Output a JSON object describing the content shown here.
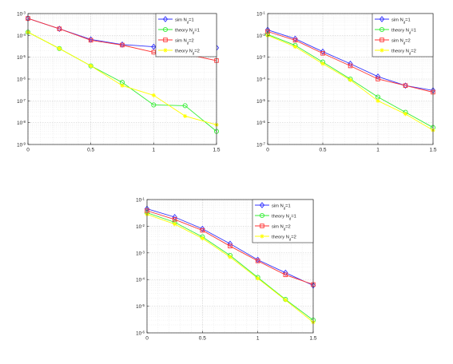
{
  "figure": {
    "background": "#ffffff"
  },
  "series_style": [
    {
      "name_base": "sim N",
      "name_sub": "d",
      "name_tail": "=1",
      "color": "#3333ff",
      "marker": "diamond"
    },
    {
      "name_base": "theory N",
      "name_sub": "d",
      "name_tail": "=1",
      "color": "#33ee33",
      "marker": "circle"
    },
    {
      "name_base": "sim N",
      "name_sub": "d",
      "name_tail": "=2",
      "color": "#ff3333",
      "marker": "square"
    },
    {
      "name_base": "theory N",
      "name_sub": "d",
      "name_tail": "=2",
      "color": "#ffff00",
      "marker": "star"
    }
  ],
  "chart_data": [
    {
      "type": "line",
      "yscale": "log",
      "xlim": [
        0,
        1.5
      ],
      "ylim_exp": [
        -9,
        -3
      ],
      "xticks": [
        "0",
        "0.5",
        "1",
        "1.5"
      ],
      "yticks": [
        {
          "base": "10",
          "exp": "-9"
        },
        {
          "base": "10",
          "exp": "-8"
        },
        {
          "base": "10",
          "exp": "-7"
        },
        {
          "base": "10",
          "exp": "-6"
        },
        {
          "base": "10",
          "exp": "-5"
        },
        {
          "base": "10",
          "exp": "-4"
        },
        {
          "base": "10",
          "exp": "-3"
        }
      ],
      "grid": true,
      "legend": "top-right",
      "x": [
        0,
        0.25,
        0.5,
        0.75,
        1.0,
        1.25,
        1.5
      ],
      "series": [
        {
          "name": "sim Nd=1",
          "values": [
            0.0006,
            0.0002,
            6.5e-05,
            3.8e-05,
            3e-05,
            1.6e-05,
            2.7e-05
          ]
        },
        {
          "name": "theory Nd=1",
          "values": [
            0.00014,
            2.5e-05,
            4e-06,
            7e-07,
            6.5e-08,
            6e-08,
            4e-09
          ]
        },
        {
          "name": "sim Nd=2",
          "values": [
            0.0006,
            0.0002,
            6e-05,
            3.6e-05,
            1.7e-05,
            1.4e-05,
            7e-06
          ]
        },
        {
          "name": "theory Nd=2",
          "values": [
            0.00014,
            2.5e-05,
            4e-06,
            5e-07,
            1.8e-07,
            2e-08,
            8e-09
          ]
        }
      ]
    },
    {
      "type": "line",
      "yscale": "log",
      "xlim": [
        0,
        1.5
      ],
      "ylim_exp": [
        -7,
        -1
      ],
      "xticks": [
        "0",
        "0.5",
        "1",
        "1.5"
      ],
      "yticks": [
        {
          "base": "10",
          "exp": "-7"
        },
        {
          "base": "10",
          "exp": "-6"
        },
        {
          "base": "10",
          "exp": "-5"
        },
        {
          "base": "10",
          "exp": "-4"
        },
        {
          "base": "10",
          "exp": "-3"
        },
        {
          "base": "10",
          "exp": "-2"
        },
        {
          "base": "10",
          "exp": "-1"
        }
      ],
      "grid": true,
      "legend": "top-right",
      "x": [
        0,
        0.25,
        0.5,
        0.75,
        1.0,
        1.25,
        1.5
      ],
      "series": [
        {
          "name": "sim Nd=1",
          "values": [
            0.018,
            0.007,
            0.0018,
            0.0005,
            0.00013,
            5e-05,
            3e-05
          ]
        },
        {
          "name": "theory Nd=1",
          "values": [
            0.011,
            0.0035,
            0.0006,
            0.0001,
            1.5e-05,
            3e-06,
            6e-07
          ]
        },
        {
          "name": "sim Nd=2",
          "values": [
            0.015,
            0.006,
            0.0015,
            0.0004,
            0.0001,
            5e-05,
            2.5e-05
          ]
        },
        {
          "name": "theory Nd=2",
          "values": [
            0.01,
            0.003,
            0.0005,
            9e-05,
            1e-05,
            2.5e-06,
            4.5e-07
          ]
        }
      ]
    },
    {
      "type": "line",
      "yscale": "log",
      "xlim": [
        0,
        1.5
      ],
      "ylim_exp": [
        -6,
        -1
      ],
      "xticks": [
        "0",
        "0.5",
        "1",
        "1.5"
      ],
      "yticks": [
        {
          "base": "10",
          "exp": "-6"
        },
        {
          "base": "10",
          "exp": "-5"
        },
        {
          "base": "10",
          "exp": "-4"
        },
        {
          "base": "10",
          "exp": "-3"
        },
        {
          "base": "10",
          "exp": "-2"
        },
        {
          "base": "10",
          "exp": "-1"
        }
      ],
      "grid": true,
      "legend": "top-right",
      "x": [
        0,
        0.25,
        0.5,
        0.75,
        1.0,
        1.25,
        1.5
      ],
      "series": [
        {
          "name": "sim Nd=1",
          "values": [
            0.045,
            0.022,
            0.008,
            0.0022,
            0.00055,
            0.00018,
            6e-05
          ]
        },
        {
          "name": "theory Nd=1",
          "values": [
            0.032,
            0.014,
            0.004,
            0.0008,
            0.00012,
            1.8e-05,
            3e-06
          ]
        },
        {
          "name": "sim Nd=2",
          "values": [
            0.038,
            0.018,
            0.007,
            0.0018,
            0.0005,
            0.00015,
            6.5e-05
          ]
        },
        {
          "name": "theory Nd=2",
          "values": [
            0.028,
            0.012,
            0.0035,
            0.0007,
            0.00011,
            1.7e-05,
            2.5e-06
          ]
        }
      ]
    }
  ]
}
